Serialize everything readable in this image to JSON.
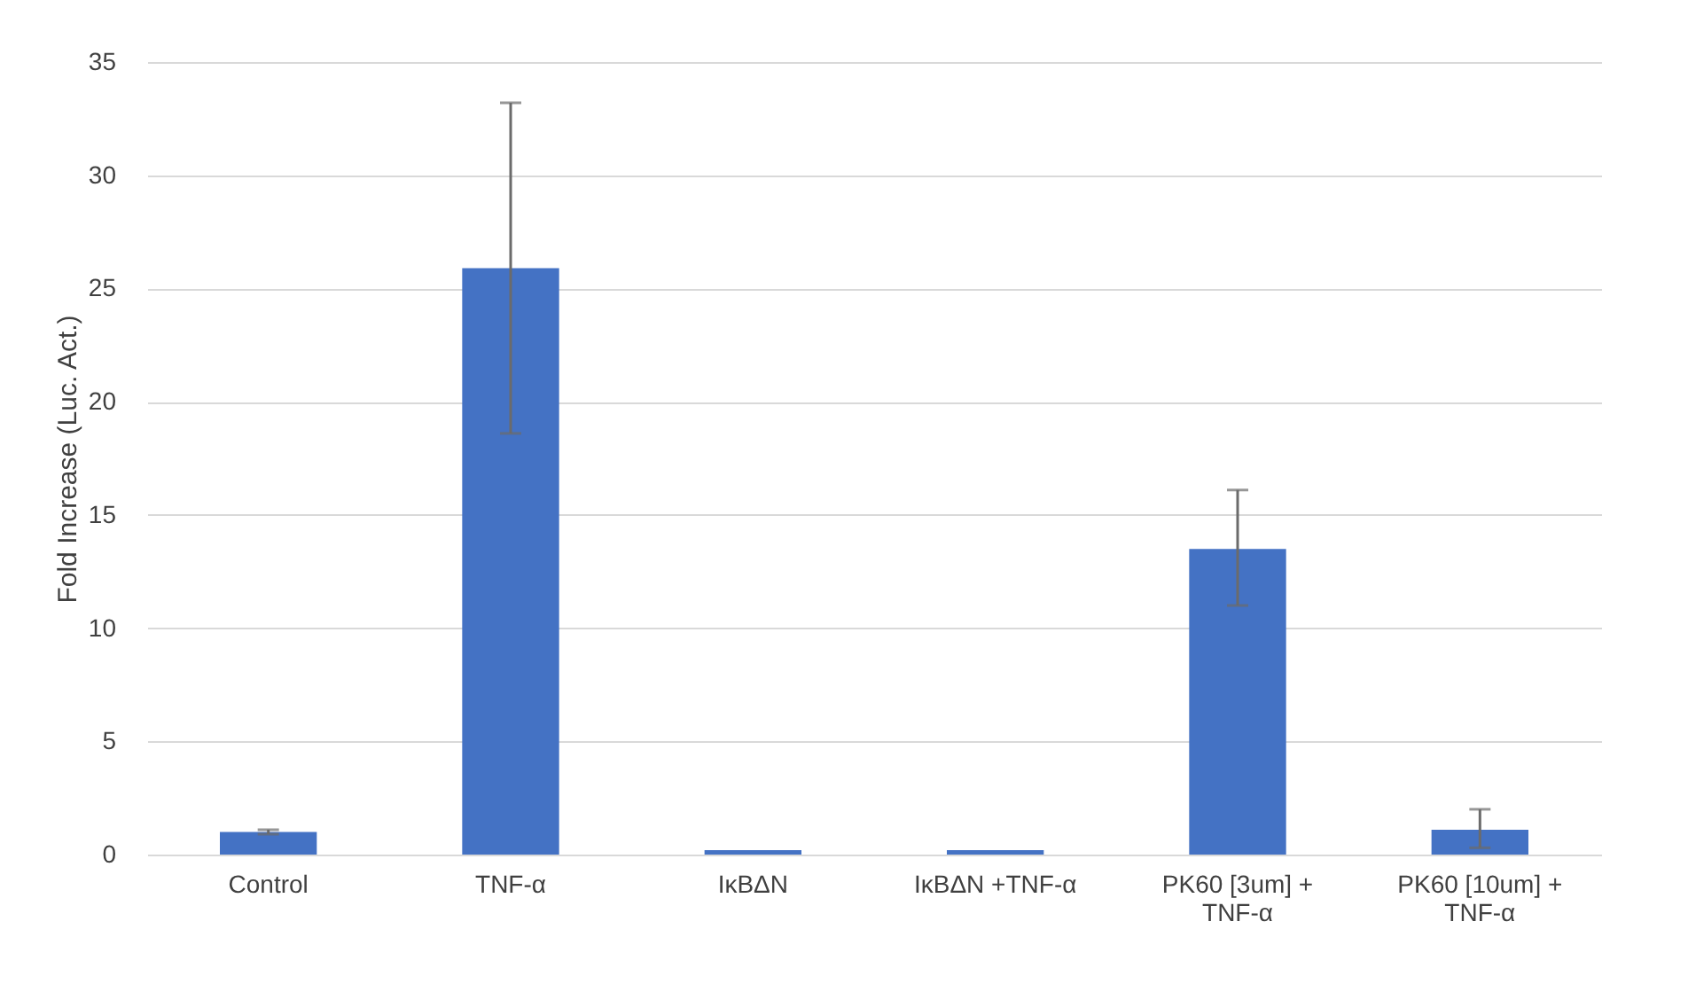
{
  "chart_data": {
    "type": "bar",
    "ylabel": "Fold Increase (Luc. Act.)",
    "categories": [
      "Control",
      "TNF-α",
      "IκBΔN",
      "IκBΔN +TNF-α",
      "PK60 [3um] + TNF-α",
      "PK60 [10um] + TNF-α"
    ],
    "values": [
      1.0,
      25.9,
      0.2,
      0.2,
      13.5,
      1.1
    ],
    "errors": [
      0.1,
      [
        18.6,
        33.2
      ],
      null,
      null,
      [
        11.0,
        16.1
      ],
      [
        0.3,
        2.0
      ]
    ],
    "color": "#4472c4",
    "ylim": [
      0,
      35
    ],
    "yticks": [
      0,
      5,
      10,
      15,
      20,
      25,
      30,
      35
    ],
    "grid": "y"
  }
}
